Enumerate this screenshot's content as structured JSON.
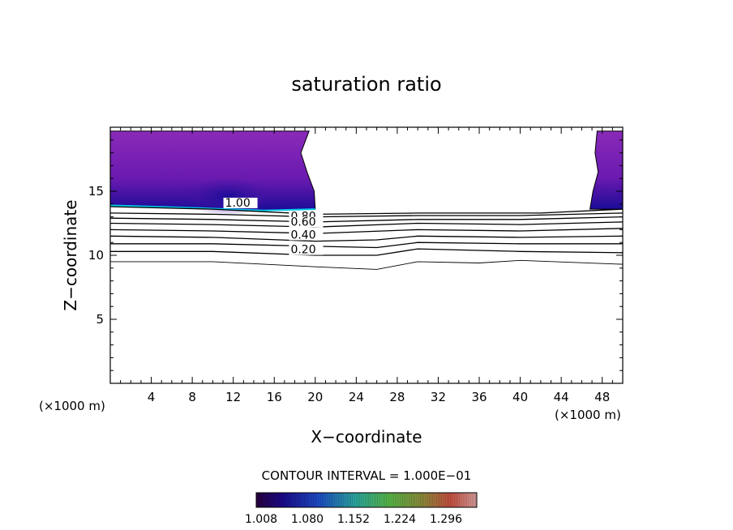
{
  "chart_data": {
    "type": "contour",
    "title": "saturation ratio",
    "xlabel": "X−coordinate",
    "ylabel": "Z−coordinate",
    "x_unit": "(×1000 m)",
    "z_unit": "(×1000 m)",
    "xlim": [
      0,
      50
    ],
    "ylim": [
      0,
      20
    ],
    "x_ticks": [
      4,
      8,
      12,
      16,
      20,
      24,
      28,
      32,
      36,
      40,
      44,
      48
    ],
    "y_ticks": [
      5,
      10,
      15
    ],
    "contour_interval_label": "CONTOUR INTERVAL = 1.000E−01",
    "contour_labels": [
      "1.00",
      "0.80",
      "0.60",
      "0.40",
      "0.20"
    ],
    "colorbar_ticks": [
      "1.008",
      "1.080",
      "1.152",
      "1.224",
      "1.296"
    ],
    "colorbar_range": [
      1.008,
      1.296
    ],
    "contours": [
      {
        "level": 1.0,
        "points": [
          [
            0,
            13.8
          ],
          [
            10,
            13.6
          ],
          [
            20,
            13.2
          ],
          [
            30,
            13.3
          ],
          [
            36,
            13.3
          ],
          [
            42,
            13.3
          ],
          [
            50,
            13.6
          ]
        ]
      },
      {
        "level": 0.9,
        "points": [
          [
            0,
            13.3
          ],
          [
            10,
            13.2
          ],
          [
            20,
            13.0
          ],
          [
            30,
            13.1
          ],
          [
            40,
            13.1
          ],
          [
            50,
            13.3
          ]
        ]
      },
      {
        "level": 0.8,
        "points": [
          [
            0,
            12.9
          ],
          [
            10,
            12.8
          ],
          [
            20,
            12.6
          ],
          [
            30,
            12.8
          ],
          [
            40,
            12.8
          ],
          [
            50,
            13.0
          ]
        ]
      },
      {
        "level": 0.7,
        "points": [
          [
            0,
            12.5
          ],
          [
            10,
            12.4
          ],
          [
            20,
            12.2
          ],
          [
            30,
            12.5
          ],
          [
            40,
            12.4
          ],
          [
            50,
            12.6
          ]
        ]
      },
      {
        "level": 0.6,
        "points": [
          [
            0,
            12.0
          ],
          [
            10,
            11.9
          ],
          [
            20,
            11.7
          ],
          [
            30,
            12.0
          ],
          [
            40,
            11.9
          ],
          [
            50,
            12.1
          ]
        ]
      },
      {
        "level": 0.5,
        "points": [
          [
            0,
            11.5
          ],
          [
            10,
            11.4
          ],
          [
            20,
            11.1
          ],
          [
            26,
            11.2
          ],
          [
            30,
            11.5
          ],
          [
            40,
            11.4
          ],
          [
            50,
            11.5
          ]
        ]
      },
      {
        "level": 0.4,
        "points": [
          [
            0,
            10.9
          ],
          [
            10,
            10.9
          ],
          [
            20,
            10.7
          ],
          [
            26,
            10.6
          ],
          [
            30,
            11.0
          ],
          [
            40,
            10.9
          ],
          [
            50,
            10.9
          ]
        ]
      },
      {
        "level": 0.3,
        "points": [
          [
            0,
            10.3
          ],
          [
            10,
            10.3
          ],
          [
            20,
            10.0
          ],
          [
            26,
            10.0
          ],
          [
            30,
            10.5
          ],
          [
            40,
            10.3
          ],
          [
            50,
            10.2
          ]
        ]
      },
      {
        "level": 0.2,
        "points": [
          [
            0,
            9.5
          ],
          [
            10,
            9.5
          ],
          [
            20,
            9.1
          ],
          [
            26,
            8.9
          ],
          [
            30,
            9.5
          ],
          [
            36,
            9.4
          ],
          [
            40,
            9.6
          ],
          [
            50,
            9.3
          ]
        ]
      }
    ],
    "shaded_regions": [
      {
        "value_range": [
          1.008,
          1.296
        ],
        "colormap": "spectral",
        "left": [
          [
            0,
            19.7
          ],
          [
            19.4,
            19.7
          ],
          [
            18.6,
            18.0
          ],
          [
            19.2,
            16.5
          ],
          [
            19.9,
            15.0
          ],
          [
            20.0,
            13.6
          ],
          [
            15,
            13.5
          ],
          [
            8,
            13.7
          ],
          [
            0,
            13.9
          ]
        ],
        "right": [
          [
            47.5,
            19.7
          ],
          [
            50,
            19.7
          ],
          [
            50,
            13.6
          ],
          [
            46.8,
            13.6
          ],
          [
            47.1,
            15.0
          ],
          [
            47.6,
            16.5
          ],
          [
            47.3,
            18.0
          ]
        ]
      }
    ],
    "colors": {
      "filled_min": "#5a1aa8",
      "filled_mid": "#7b22b8",
      "core": "#1a0f9c",
      "edge_cyan": "#00c8e8"
    }
  }
}
